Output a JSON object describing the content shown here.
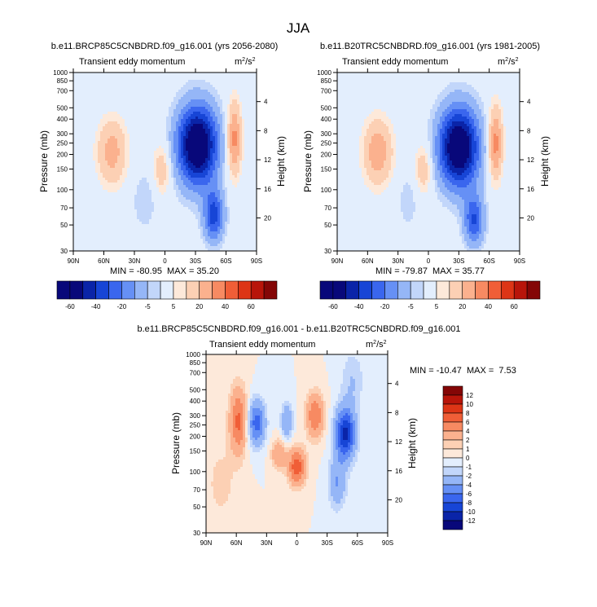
{
  "figure_title": "JJA",
  "colors": {
    "seq_neg": [
      "#08087a",
      "#0a24a8",
      "#1745d6",
      "#3a66ee",
      "#6690f5",
      "#95b6f7",
      "#c2d6fa",
      "#e3eefd"
    ],
    "seq_pos": [
      "#fde9da",
      "#fcd0b4",
      "#fbb18e",
      "#f78a62",
      "#f05e37",
      "#dd3516",
      "#b8150a",
      "#840606"
    ],
    "frame": "#000000"
  },
  "chart_data": [
    {
      "type": "contour",
      "id": "panel-top-left",
      "title": "b.e11.BRCP85C5CNBDRD.f09_g16.001 (yrs 2056-2080)",
      "left_string": "Transient eddy momentum",
      "units_base": "m",
      "units_sup1": "2",
      "units_mid": "/s",
      "units_sup2": "2",
      "xlabel": "",
      "ylabel": "Pressure (mb)",
      "ylabel_right": "Height (km)",
      "x_ticks": [
        "90N",
        "60N",
        "30N",
        "0",
        "30S",
        "60S",
        "90S"
      ],
      "x_values": [
        90,
        60,
        30,
        0,
        -30,
        -60,
        -90
      ],
      "y_ticks": [
        "30",
        "50",
        "70",
        "100",
        "150",
        "200",
        "250",
        "300",
        "400",
        "500",
        "700",
        "850",
        "1000"
      ],
      "y_values": [
        30,
        50,
        70,
        100,
        150,
        200,
        250,
        300,
        400,
        500,
        700,
        850,
        1000
      ],
      "height_ticks": [
        "20",
        "16",
        "12",
        "8",
        "4"
      ],
      "height_values": [
        20,
        16,
        12,
        8,
        4
      ],
      "ylim": [
        1000,
        30
      ],
      "xlim": [
        90,
        -90
      ],
      "stats": "MIN = -80.95  MAX = 35.20",
      "levels": [
        -70,
        -60,
        -50,
        -40,
        -30,
        -20,
        -10,
        -5,
        5,
        10,
        20,
        30,
        40,
        50,
        60,
        70
      ],
      "features": [
        {
          "lat": -32,
          "p": 240,
          "value": -80.95,
          "sx": 14,
          "sy": 0.55
        },
        {
          "lat": -48,
          "p": 60,
          "value": -45,
          "sx": 7,
          "sy": 0.35
        },
        {
          "lat": 52,
          "p": 210,
          "value": 25,
          "sx": 10,
          "sy": 0.45
        },
        {
          "lat": 3,
          "p": 150,
          "value": 18,
          "sx": 6,
          "sy": 0.35
        },
        {
          "lat": -68,
          "p": 270,
          "value": 35.2,
          "sx": 5,
          "sy": 0.5
        },
        {
          "lat": 20,
          "p": 80,
          "value": -10,
          "sx": 8,
          "sy": 0.4
        }
      ],
      "colorbar": {
        "orientation": "horizontal",
        "labels": [
          "-60",
          "-40",
          "-20",
          "-5",
          "5",
          "20",
          "40",
          "60"
        ]
      }
    },
    {
      "type": "contour",
      "id": "panel-top-right",
      "title": "b.e11.B20TRC5CNBDRD.f09_g16.001 (yrs 1981-2005)",
      "left_string": "Transient eddy momentum",
      "units_base": "m",
      "units_sup1": "2",
      "units_mid": "/s",
      "units_sup2": "2",
      "xlabel": "",
      "ylabel": "Pressure (mb)",
      "ylabel_right": "Height (km)",
      "x_ticks": [
        "90N",
        "60N",
        "30N",
        "0",
        "30S",
        "60S",
        "90S"
      ],
      "x_values": [
        90,
        60,
        30,
        0,
        -30,
        -60,
        -90
      ],
      "y_ticks": [
        "30",
        "50",
        "70",
        "100",
        "150",
        "200",
        "250",
        "300",
        "400",
        "500",
        "700",
        "850",
        "1000"
      ],
      "y_values": [
        30,
        50,
        70,
        100,
        150,
        200,
        250,
        300,
        400,
        500,
        700,
        850,
        1000
      ],
      "height_ticks": [
        "20",
        "16",
        "12",
        "8",
        "4"
      ],
      "height_values": [
        20,
        16,
        12,
        8,
        4
      ],
      "ylim": [
        1000,
        30
      ],
      "xlim": [
        90,
        -90
      ],
      "stats": "MIN = -79.87  MAX = 35.77",
      "levels": [
        -70,
        -60,
        -50,
        -40,
        -30,
        -20,
        -10,
        -5,
        5,
        10,
        20,
        30,
        40,
        50,
        60,
        70
      ],
      "features": [
        {
          "lat": -30,
          "p": 230,
          "value": -79.87,
          "sx": 14,
          "sy": 0.55
        },
        {
          "lat": -45,
          "p": 55,
          "value": -40,
          "sx": 7,
          "sy": 0.35
        },
        {
          "lat": 50,
          "p": 210,
          "value": 28,
          "sx": 10,
          "sy": 0.45
        },
        {
          "lat": 5,
          "p": 150,
          "value": 18,
          "sx": 6,
          "sy": 0.35
        },
        {
          "lat": -66,
          "p": 250,
          "value": 35.77,
          "sx": 5,
          "sy": 0.5
        },
        {
          "lat": 20,
          "p": 80,
          "value": -8,
          "sx": 8,
          "sy": 0.4
        }
      ],
      "colorbar": {
        "orientation": "horizontal",
        "labels": [
          "-60",
          "-40",
          "-20",
          "-5",
          "5",
          "20",
          "40",
          "60"
        ]
      }
    },
    {
      "type": "contour",
      "id": "panel-bottom-difference",
      "title": "b.e11.BRCP85C5CNBDRD.f09_g16.001 - b.e11.B20TRC5CNBDRD.f09_g16.001",
      "left_string": "Transient eddy momentum",
      "units_base": "m",
      "units_sup1": "2",
      "units_mid": "/s",
      "units_sup2": "2",
      "xlabel": "",
      "ylabel": "Pressure (mb)",
      "ylabel_right": "Height (km)",
      "x_ticks": [
        "90N",
        "60N",
        "30N",
        "0",
        "30S",
        "60S",
        "90S"
      ],
      "x_values": [
        90,
        60,
        30,
        0,
        -30,
        -60,
        -90
      ],
      "y_ticks": [
        "30",
        "50",
        "70",
        "100",
        "150",
        "200",
        "250",
        "300",
        "400",
        "500",
        "700",
        "850",
        "1000"
      ],
      "y_values": [
        30,
        50,
        70,
        100,
        150,
        200,
        250,
        300,
        400,
        500,
        700,
        850,
        1000
      ],
      "height_ticks": [
        "20",
        "16",
        "12",
        "8",
        "4"
      ],
      "height_values": [
        20,
        16,
        12,
        8,
        4
      ],
      "ylim": [
        1000,
        30
      ],
      "xlim": [
        90,
        -90
      ],
      "stats": "MIN = -10.47  MAX =  7.53",
      "levels": [
        -12,
        -10,
        -8,
        -6,
        -4,
        -2,
        -1,
        0,
        1,
        2,
        4,
        6,
        8,
        10,
        12
      ],
      "features": [
        {
          "lat": 58,
          "p": 270,
          "value": 6.5,
          "sx": 6,
          "sy": 0.45
        },
        {
          "lat": 40,
          "p": 260,
          "value": -7,
          "sx": 6,
          "sy": 0.3
        },
        {
          "lat": 0,
          "p": 110,
          "value": 7.53,
          "sx": 6,
          "sy": 0.25
        },
        {
          "lat": 18,
          "p": 140,
          "value": 4,
          "sx": 5,
          "sy": 0.2
        },
        {
          "lat": -48,
          "p": 210,
          "value": -10.47,
          "sx": 7,
          "sy": 0.35
        },
        {
          "lat": -40,
          "p": 80,
          "value": -4,
          "sx": 6,
          "sy": 0.35
        },
        {
          "lat": -18,
          "p": 300,
          "value": 6,
          "sx": 6,
          "sy": 0.3
        },
        {
          "lat": 10,
          "p": 270,
          "value": -4,
          "sx": 4,
          "sy": 0.25
        },
        {
          "lat": -55,
          "p": 600,
          "value": -2,
          "sx": 8,
          "sy": 0.4
        },
        {
          "lat": 75,
          "p": 80,
          "value": 1.5,
          "sx": 10,
          "sy": 0.5
        }
      ],
      "colorbar": {
        "orientation": "vertical",
        "labels": [
          "12",
          "10",
          "8",
          "6",
          "4",
          "2",
          "1",
          "0",
          "-1",
          "-2",
          "-4",
          "-6",
          "-8",
          "-10",
          "-12"
        ]
      }
    }
  ]
}
